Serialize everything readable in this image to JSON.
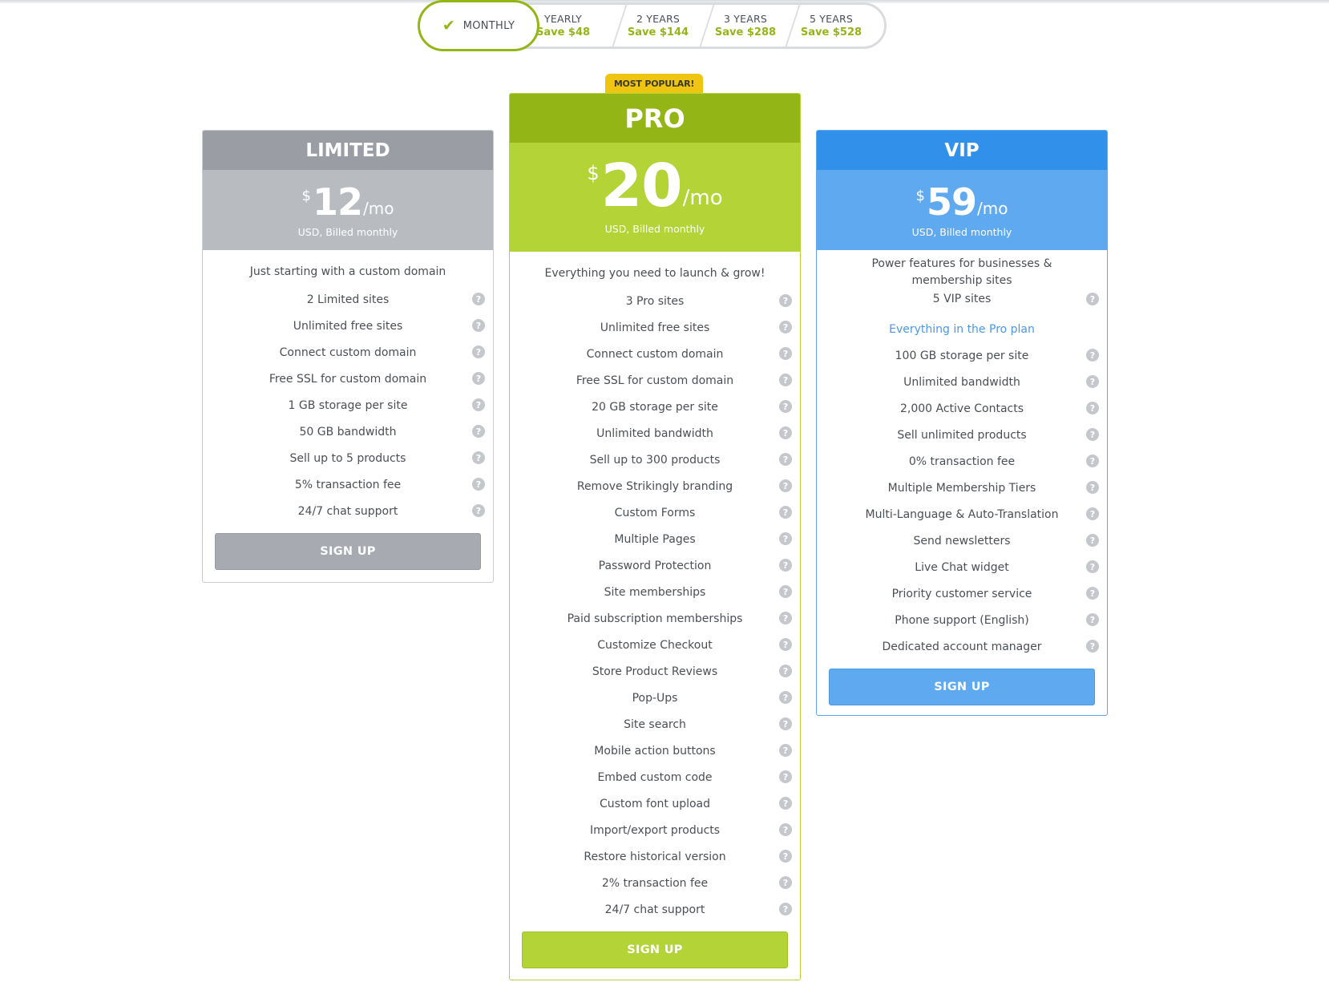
{
  "billing_periods": {
    "active": {
      "label": "MONTHLY"
    },
    "options": [
      {
        "label": "YEARLY",
        "save": "Save $48"
      },
      {
        "label": "2 YEARS",
        "save": "Save $144"
      },
      {
        "label": "3 YEARS",
        "save": "Save $288"
      },
      {
        "label": "5 YEARS",
        "save": "Save $528"
      }
    ]
  },
  "colors": {
    "limited_header": "#9a9ea4",
    "limited_price": "#b8bcc1",
    "pro_header": "#93b516",
    "pro_price": "#b3d336",
    "vip_header": "#3190ea",
    "vip_price": "#5fa9f1",
    "badge": "#f0c512",
    "help_icon": "#c4c7cb"
  },
  "plans": {
    "limited": {
      "name": "LIMITED",
      "currency": "$",
      "amount": "12",
      "per": "/mo",
      "billing_note": "USD, Billed monthly",
      "tagline": "Just starting with a custom domain",
      "features": [
        "2 Limited sites",
        "Unlimited free sites",
        "Connect custom domain",
        "Free SSL for custom domain",
        "1 GB storage per site",
        "50 GB bandwidth",
        "Sell up to 5 products",
        "5% transaction fee",
        "24/7 chat support"
      ],
      "cta": "SIGN UP"
    },
    "pro": {
      "badge": "MOST POPULAR!",
      "name": "PRO",
      "currency": "$",
      "amount": "20",
      "per": "/mo",
      "billing_note": "USD, Billed monthly",
      "tagline": "Everything you need to launch & grow!",
      "features": [
        "3 Pro sites",
        "Unlimited free sites",
        "Connect custom domain",
        "Free SSL for custom domain",
        "20 GB storage per site",
        "Unlimited bandwidth",
        "Sell up to 300 products",
        "Remove Strikingly branding",
        "Custom Forms",
        "Multiple Pages",
        "Password Protection",
        "Site memberships",
        "Paid subscription memberships",
        "Customize Checkout",
        "Store Product Reviews",
        "Pop-Ups",
        "Site search",
        "Mobile action buttons",
        "Embed custom code",
        "Custom font upload",
        "Import/export products",
        "Restore historical version",
        "2% transaction fee",
        "24/7 chat support"
      ],
      "cta": "SIGN UP"
    },
    "vip": {
      "name": "VIP",
      "currency": "$",
      "amount": "59",
      "per": "/mo",
      "billing_note": "USD, Billed monthly",
      "tagline_line1": "Power features for businesses &",
      "tagline_line2": "membership sites",
      "first_feature": "5 VIP sites",
      "highlight": "Everything in the Pro plan",
      "features": [
        "100 GB storage per site",
        "Unlimited bandwidth",
        "2,000 Active Contacts",
        "Sell unlimited products",
        "0% transaction fee",
        "Multiple Membership Tiers",
        "Multi-Language & Auto-Translation",
        "Send newsletters",
        "Live Chat widget",
        "Priority customer service",
        "Phone support (English)",
        "Dedicated account manager"
      ],
      "cta": "SIGN UP"
    }
  }
}
